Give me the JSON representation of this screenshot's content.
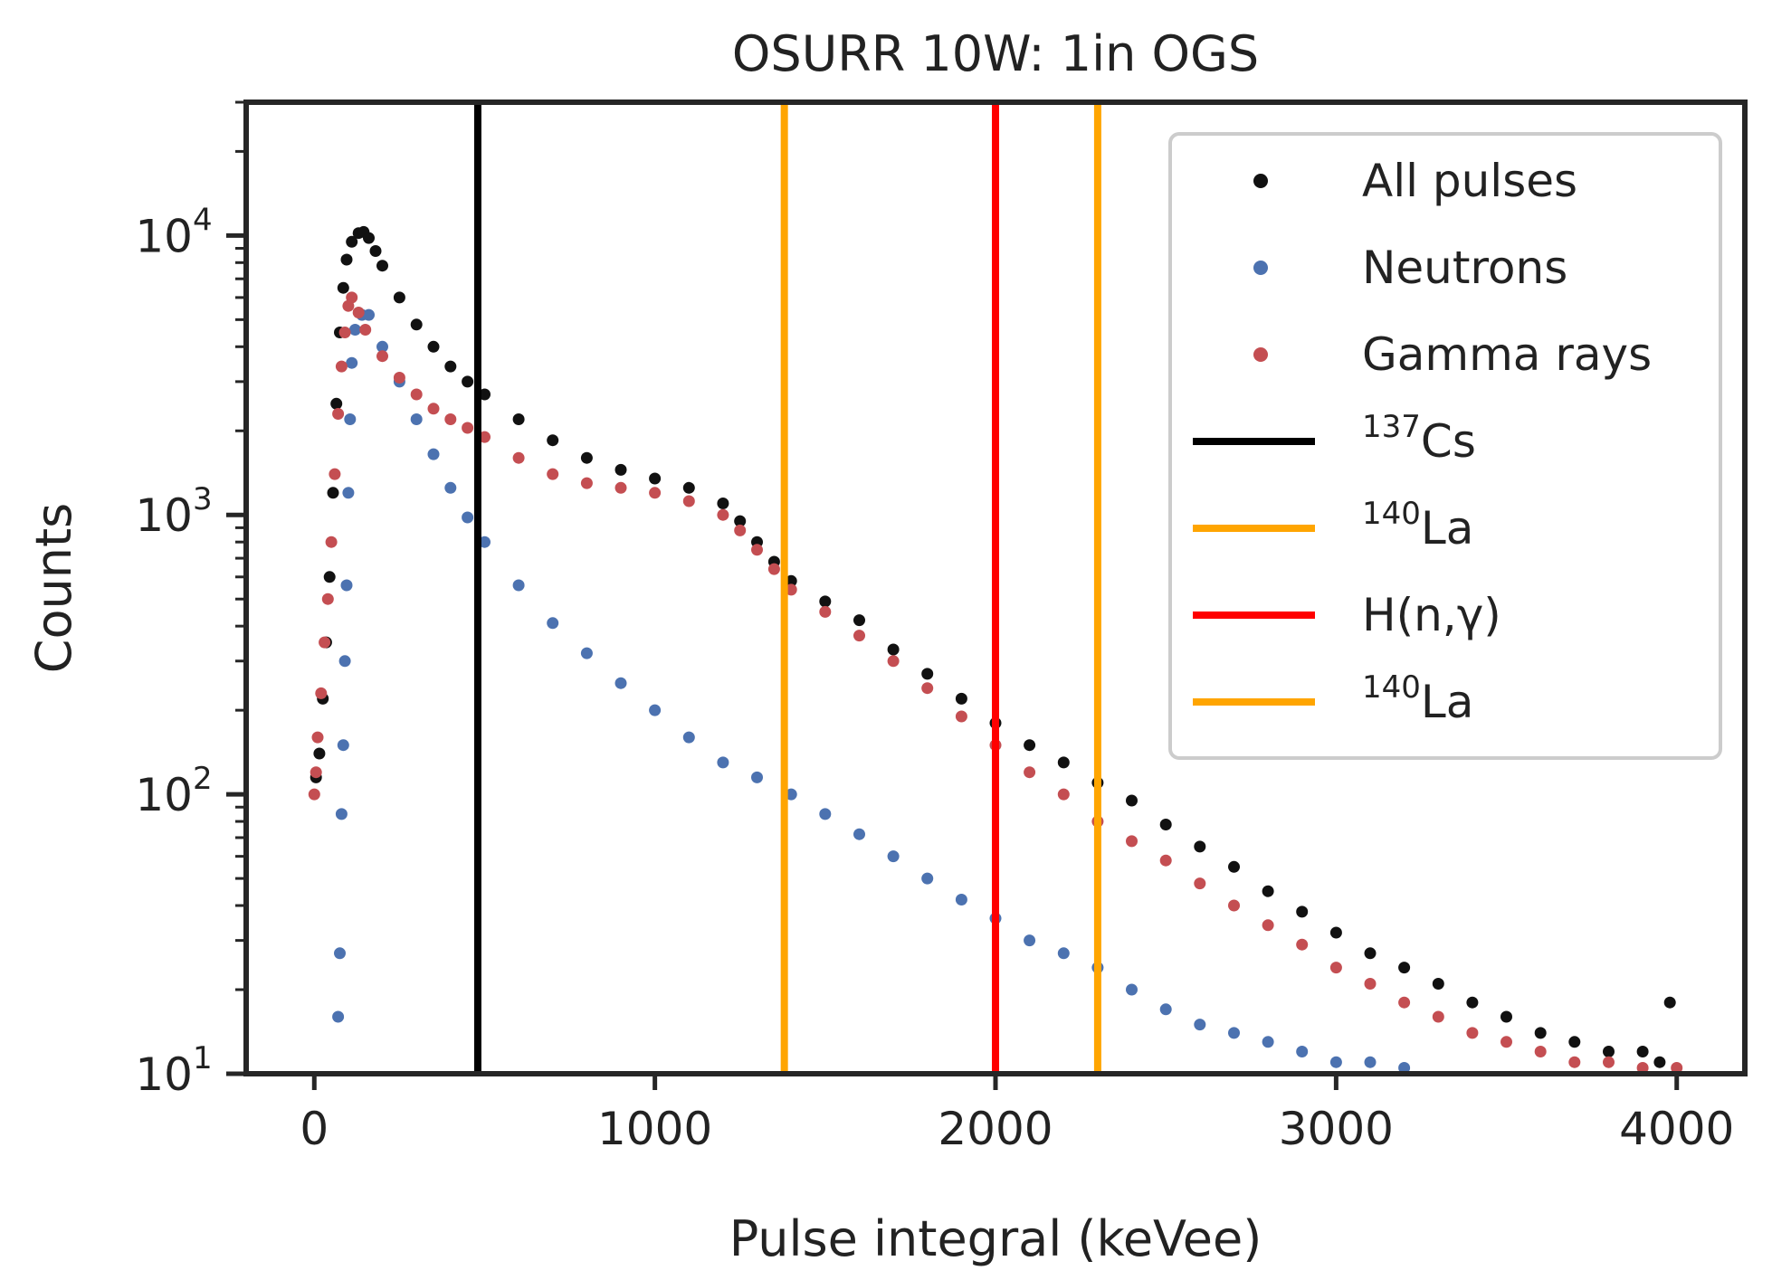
{
  "chart_data": {
    "type": "scatter",
    "title": "OSURR 10W: 1in OGS",
    "xlabel": "Pulse integral (keVee)",
    "ylabel": "Counts",
    "xlim": [
      -200,
      4200
    ],
    "ylim": [
      10,
      30000
    ],
    "yscale": "log",
    "xticks": [
      0,
      1000,
      2000,
      3000,
      4000
    ],
    "yticks": [
      {
        "value": 10,
        "base": "10",
        "exp": "1"
      },
      {
        "value": 100,
        "base": "10",
        "exp": "2"
      },
      {
        "value": 1000,
        "base": "10",
        "exp": "3"
      },
      {
        "value": 10000,
        "base": "10",
        "exp": "4"
      }
    ],
    "series": [
      {
        "name": "All pulses",
        "color": "#111111",
        "points": [
          [
            5,
            115
          ],
          [
            15,
            140
          ],
          [
            25,
            220
          ],
          [
            35,
            350
          ],
          [
            45,
            600
          ],
          [
            55,
            1200
          ],
          [
            65,
            2500
          ],
          [
            75,
            4500
          ],
          [
            85,
            6500
          ],
          [
            95,
            8200
          ],
          [
            110,
            9500
          ],
          [
            130,
            10200
          ],
          [
            145,
            10300
          ],
          [
            160,
            9800
          ],
          [
            180,
            8800
          ],
          [
            200,
            7800
          ],
          [
            250,
            6000
          ],
          [
            300,
            4800
          ],
          [
            350,
            4000
          ],
          [
            400,
            3400
          ],
          [
            450,
            3000
          ],
          [
            500,
            2700
          ],
          [
            600,
            2200
          ],
          [
            700,
            1850
          ],
          [
            800,
            1600
          ],
          [
            900,
            1450
          ],
          [
            1000,
            1350
          ],
          [
            1100,
            1250
          ],
          [
            1200,
            1100
          ],
          [
            1250,
            950
          ],
          [
            1300,
            800
          ],
          [
            1350,
            680
          ],
          [
            1400,
            580
          ],
          [
            1500,
            490
          ],
          [
            1600,
            420
          ],
          [
            1700,
            330
          ],
          [
            1800,
            270
          ],
          [
            1900,
            220
          ],
          [
            2000,
            180
          ],
          [
            2100,
            150
          ],
          [
            2200,
            130
          ],
          [
            2300,
            110
          ],
          [
            2400,
            95
          ],
          [
            2500,
            78
          ],
          [
            2600,
            65
          ],
          [
            2700,
            55
          ],
          [
            2800,
            45
          ],
          [
            2900,
            38
          ],
          [
            3000,
            32
          ],
          [
            3100,
            27
          ],
          [
            3200,
            24
          ],
          [
            3300,
            21
          ],
          [
            3400,
            18
          ],
          [
            3500,
            16
          ],
          [
            3600,
            14
          ],
          [
            3700,
            13
          ],
          [
            3800,
            12
          ],
          [
            3900,
            12
          ],
          [
            3950,
            11
          ],
          [
            3980,
            18
          ]
        ]
      },
      {
        "name": "Neutrons",
        "color": "#4C72B0",
        "points": [
          [
            70,
            16
          ],
          [
            75,
            27
          ],
          [
            80,
            85
          ],
          [
            85,
            150
          ],
          [
            90,
            300
          ],
          [
            95,
            560
          ],
          [
            100,
            1200
          ],
          [
            105,
            2200
          ],
          [
            110,
            3500
          ],
          [
            120,
            4600
          ],
          [
            140,
            5200
          ],
          [
            160,
            5200
          ],
          [
            200,
            4000
          ],
          [
            250,
            3000
          ],
          [
            300,
            2200
          ],
          [
            350,
            1650
          ],
          [
            400,
            1250
          ],
          [
            450,
            980
          ],
          [
            500,
            800
          ],
          [
            600,
            560
          ],
          [
            700,
            410
          ],
          [
            800,
            320
          ],
          [
            900,
            250
          ],
          [
            1000,
            200
          ],
          [
            1100,
            160
          ],
          [
            1200,
            130
          ],
          [
            1300,
            115
          ],
          [
            1400,
            100
          ],
          [
            1500,
            85
          ],
          [
            1600,
            72
          ],
          [
            1700,
            60
          ],
          [
            1800,
            50
          ],
          [
            1900,
            42
          ],
          [
            2000,
            36
          ],
          [
            2100,
            30
          ],
          [
            2200,
            27
          ],
          [
            2300,
            24
          ],
          [
            2400,
            20
          ],
          [
            2500,
            17
          ],
          [
            2600,
            15
          ],
          [
            2700,
            14
          ],
          [
            2800,
            13
          ],
          [
            2900,
            12
          ],
          [
            3000,
            11
          ],
          [
            3100,
            11
          ],
          [
            3200,
            10.5
          ]
        ]
      },
      {
        "name": "Gamma rays",
        "color": "#C44E52",
        "points": [
          [
            0,
            100
          ],
          [
            5,
            120
          ],
          [
            10,
            160
          ],
          [
            20,
            230
          ],
          [
            30,
            350
          ],
          [
            40,
            500
          ],
          [
            50,
            800
          ],
          [
            60,
            1400
          ],
          [
            70,
            2300
          ],
          [
            80,
            3400
          ],
          [
            90,
            4500
          ],
          [
            100,
            5600
          ],
          [
            110,
            6000
          ],
          [
            130,
            5300
          ],
          [
            150,
            4600
          ],
          [
            200,
            3700
          ],
          [
            250,
            3100
          ],
          [
            300,
            2700
          ],
          [
            350,
            2400
          ],
          [
            400,
            2200
          ],
          [
            450,
            2050
          ],
          [
            500,
            1900
          ],
          [
            600,
            1600
          ],
          [
            700,
            1400
          ],
          [
            800,
            1300
          ],
          [
            900,
            1250
          ],
          [
            1000,
            1200
          ],
          [
            1100,
            1120
          ],
          [
            1200,
            1000
          ],
          [
            1250,
            880
          ],
          [
            1300,
            750
          ],
          [
            1350,
            640
          ],
          [
            1400,
            540
          ],
          [
            1500,
            450
          ],
          [
            1600,
            370
          ],
          [
            1700,
            300
          ],
          [
            1800,
            240
          ],
          [
            1900,
            190
          ],
          [
            2000,
            150
          ],
          [
            2100,
            120
          ],
          [
            2200,
            100
          ],
          [
            2300,
            80
          ],
          [
            2400,
            68
          ],
          [
            2500,
            58
          ],
          [
            2600,
            48
          ],
          [
            2700,
            40
          ],
          [
            2800,
            34
          ],
          [
            2900,
            29
          ],
          [
            3000,
            24
          ],
          [
            3100,
            21
          ],
          [
            3200,
            18
          ],
          [
            3300,
            16
          ],
          [
            3400,
            14
          ],
          [
            3500,
            13
          ],
          [
            3600,
            12
          ],
          [
            3700,
            11
          ],
          [
            3800,
            11
          ],
          [
            3900,
            10.5
          ],
          [
            4000,
            10.5
          ]
        ]
      }
    ],
    "vlines": [
      {
        "name": "137Cs",
        "base": "Cs",
        "sup": "137",
        "x": 480,
        "color": "#000000"
      },
      {
        "name": "140La",
        "base": "La",
        "sup": "140",
        "x": 1380,
        "color": "#FFA500"
      },
      {
        "name": "H(n,γ)",
        "base": "H(n,γ)",
        "sup": "",
        "x": 2000,
        "color": "#FF0000"
      },
      {
        "name": "140La",
        "base": "La",
        "sup": "140",
        "x": 2300,
        "color": "#FFA500"
      }
    ],
    "legend": {
      "position": "top-right",
      "items": [
        {
          "label": "All pulses",
          "kind": "marker",
          "color": "#111111"
        },
        {
          "label": "Neutrons",
          "kind": "marker",
          "color": "#4C72B0"
        },
        {
          "label": "Gamma rays",
          "kind": "marker",
          "color": "#C44E52"
        },
        {
          "label": "Cs",
          "sup": "137",
          "kind": "line",
          "color": "#000000"
        },
        {
          "label": "La",
          "sup": "140",
          "kind": "line",
          "color": "#FFA500"
        },
        {
          "label": "H(n,γ)",
          "sup": "",
          "kind": "line",
          "color": "#FF0000"
        },
        {
          "label": "La",
          "sup": "140",
          "kind": "line",
          "color": "#FFA500"
        }
      ]
    }
  }
}
